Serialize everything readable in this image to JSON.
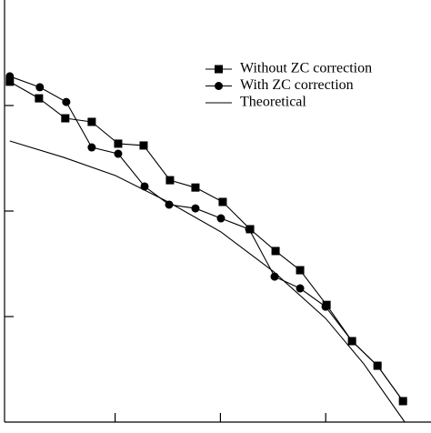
{
  "chart_data": {
    "type": "line",
    "log_y": true,
    "xlim": [
      -0.05,
      4
    ],
    "xticks": [
      1,
      2,
      3
    ],
    "ylim": [
      1e-05,
      0.1
    ],
    "yticks": [
      0.01,
      0.001,
      0.0001
    ],
    "legend": "upper right",
    "series": [
      {
        "name": "Without ZC correction",
        "marker": "square",
        "color": "#000000",
        "x": [
          0,
          0.277,
          0.527,
          0.778,
          1.029,
          1.271,
          1.521,
          1.763,
          2.022,
          2.282,
          2.524,
          2.757,
          3.008,
          3.25,
          3.492,
          3.734
        ],
        "values": [
          0.0168,
          0.0117,
          0.00757,
          0.007,
          0.00435,
          0.00418,
          0.00196,
          0.00167,
          0.00122,
          0.000673,
          0.000418,
          0.000275,
          0.000129,
          5.85e-05,
          3.42e-05,
          1.58e-05
        ]
      },
      {
        "name": "With ZC correction",
        "marker": "circle",
        "color": "#000000",
        "x": [
          0,
          0.285,
          0.536,
          0.778,
          1.029,
          1.28,
          1.513,
          1.763,
          2.005,
          2.273,
          2.515,
          2.757,
          2.999,
          3.25,
          3.492,
          3.734
        ],
        "values": [
          0.0189,
          0.0149,
          0.0108,
          0.00401,
          0.00349,
          0.00171,
          0.00115,
          0.00106,
          0.000853,
          0.000673,
          0.000239,
          0.000185,
          0.000124,
          5.85e-05,
          3.42e-05,
          1.58e-05
        ]
      },
      {
        "name": "Theoretical",
        "marker": "none",
        "color": "#000000",
        "x": [
          0,
          0.51,
          1.003,
          1.504,
          2.005,
          2.498,
          2.999,
          3.362,
          3.751
        ],
        "values": [
          0.00461,
          0.00323,
          0.00217,
          0.00122,
          0.000634,
          0.00027,
          9.62e-05,
          3.56e-05,
          1e-05
        ]
      }
    ]
  }
}
